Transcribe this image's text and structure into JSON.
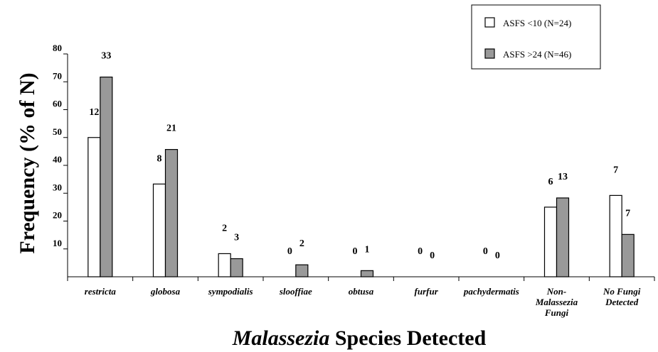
{
  "chart_data": {
    "type": "bar",
    "categories": [
      [
        "restricta"
      ],
      [
        "globosa"
      ],
      [
        "sympodialis"
      ],
      [
        "slooffiae"
      ],
      [
        "obtusa"
      ],
      [
        "furfur"
      ],
      [
        "pachydermatis"
      ],
      [
        "Non-",
        "Malassezia",
        "Fungi"
      ],
      [
        "No Fungi",
        "Detected"
      ]
    ],
    "series": [
      {
        "name": "ASFS <10 (N=24)",
        "color": "#ffffff",
        "values": [
          50,
          33.3,
          8.3,
          0,
          0,
          0,
          0,
          25,
          29.2
        ],
        "counts": [
          "12",
          "8",
          "2",
          "0",
          "0",
          "0",
          "0",
          "6",
          "7"
        ]
      },
      {
        "name": "ASFS >24 (N=46)",
        "color": "#999999",
        "values": [
          71.7,
          45.7,
          6.5,
          4.3,
          2.2,
          0,
          0,
          28.3,
          15.2
        ],
        "counts": [
          "33",
          "21",
          "3",
          "2",
          "1",
          "0",
          "0",
          "13",
          "7"
        ]
      }
    ],
    "yticks": [
      "10",
      "20",
      "30",
      "40",
      "50",
      "60",
      "70",
      "80"
    ],
    "ylim": [
      0,
      80
    ],
    "ylabel": "Frequency (% of N)",
    "xlabel_italic": "Malassezia",
    "xlabel_rest": " Species Detected",
    "legend_position": "top-right",
    "grid": false
  }
}
